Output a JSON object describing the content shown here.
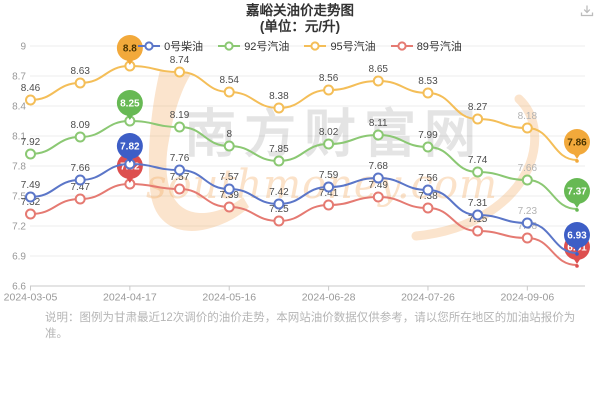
{
  "header": {
    "title_line1": "嘉峪关油价走势图",
    "title_line2": "(单位：元/升)"
  },
  "icons": {
    "download": "arrow-down-to-tray"
  },
  "watermark": {
    "cjk_text": "南方财富网",
    "latin_text": "southmoney.com"
  },
  "footnote": {
    "text": "说明：图例为甘肃最近12次调价的油价走势，本网站油价数据仅供参考，请以您所在地区的加油站报价为准。"
  },
  "chart_data": {
    "type": "line",
    "title": "嘉峪关油价走势图",
    "subtitle": "(单位：元/升)",
    "unit": "元/升",
    "legend_position": "top",
    "grid": true,
    "ylim": [
      6.6,
      9
    ],
    "y_ticks": [
      9,
      8.7,
      8.4,
      8.1,
      7.8,
      7.5,
      7.2,
      6.9,
      6.6
    ],
    "n_points": 12,
    "x_labels": [
      "2024-03-05",
      "2024-04-17",
      "2024-05-16",
      "2024-06-28",
      "2024-07-26",
      "2024-09-06"
    ],
    "x_label_indices": [
      0,
      2,
      4,
      6,
      8,
      10
    ],
    "muted_label_index": 10,
    "draw_order": [
      2,
      1,
      3,
      0
    ],
    "series": [
      {
        "name": "0号柴油",
        "color": "#5b76c8",
        "balloon_color": "#3d5ec6",
        "balloon_text_color": "#ffffff",
        "values": [
          7.49,
          7.66,
          7.82,
          7.76,
          7.57,
          7.42,
          7.59,
          7.68,
          7.56,
          7.31,
          7.23,
          6.93
        ],
        "point_labels": [
          "7.49",
          "7.66",
          "7.82",
          "7.76",
          "7.57",
          "7.42",
          "7.59",
          "7.68",
          "7.56",
          "7.31",
          "7.23",
          "6.93"
        ],
        "max_point": {
          "index": 2,
          "label": "7.82"
        },
        "min_point": {
          "index": 11,
          "label": "6.93"
        }
      },
      {
        "name": "92号汽油",
        "color": "#8bc873",
        "balloon_color": "#67b954",
        "balloon_text_color": "#ffffff",
        "values": [
          7.92,
          8.09,
          8.25,
          8.19,
          8,
          7.85,
          8.02,
          8.11,
          7.99,
          7.74,
          7.66,
          7.37
        ],
        "point_labels": [
          "7.92",
          "8.09",
          "8.25",
          "8.19",
          "8",
          "7.85",
          "8.02",
          "8.11",
          "7.99",
          "7.74",
          "7.66",
          "7.37"
        ],
        "max_point": {
          "index": 2,
          "label": "8.25"
        },
        "min_point": {
          "index": 11,
          "label": "7.37"
        }
      },
      {
        "name": "95号汽油",
        "color": "#f4be58",
        "balloon_color": "#f2a93b",
        "balloon_text_color": "#4a3400",
        "values": [
          8.46,
          8.63,
          8.8,
          8.74,
          8.54,
          8.38,
          8.56,
          8.65,
          8.53,
          8.27,
          8.18,
          7.86
        ],
        "point_labels": [
          "8.46",
          "8.63",
          "8.8",
          "8.74",
          "8.54",
          "8.38",
          "8.56",
          "8.65",
          "8.53",
          "8.27",
          "8.18",
          "7.86"
        ],
        "max_point": {
          "index": 2,
          "label": "8.8"
        },
        "min_point": {
          "index": 11,
          "label": "7.86"
        }
      },
      {
        "name": "89号汽油",
        "color": "#e57a72",
        "balloon_color": "#dd4f4f",
        "balloon_text_color": "#ffffff",
        "values": [
          7.32,
          7.47,
          7.62,
          7.57,
          7.39,
          7.25,
          7.41,
          7.49,
          7.38,
          7.15,
          7.08,
          6.81
        ],
        "point_labels": [
          "7.32",
          "7.47",
          "7.62",
          "7.57",
          "7.39",
          "7.25",
          "7.41",
          "7.49",
          "7.38",
          "7.15",
          "7.08",
          "6.81"
        ],
        "max_point": {
          "index": 2,
          "label": "7.62"
        },
        "min_point": {
          "index": 11,
          "label": "6.81"
        }
      }
    ]
  }
}
